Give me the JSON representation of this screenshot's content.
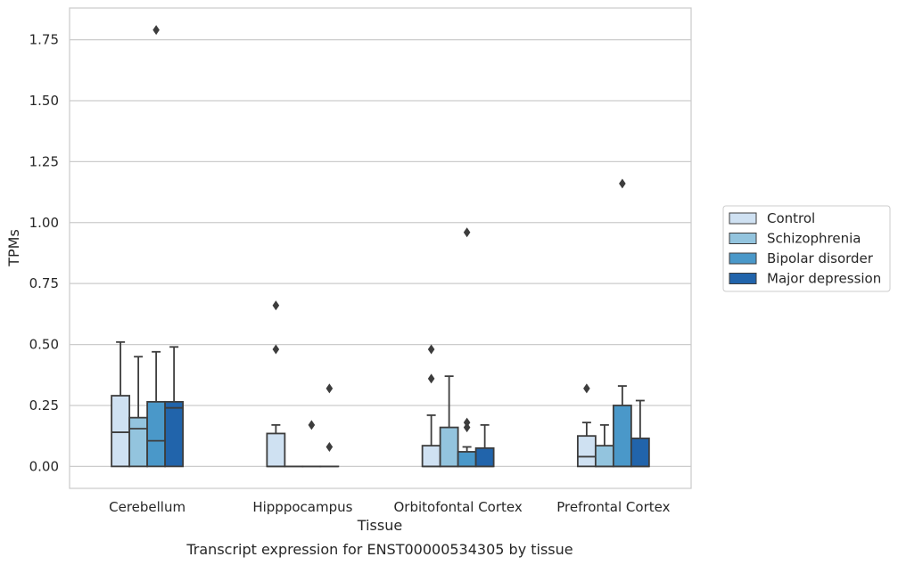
{
  "chart_data": {
    "type": "box",
    "title": "Transcript expression for ENST00000534305 by tissue",
    "xlabel": "Tissue",
    "ylabel": "TPMs",
    "ylim": [
      -0.09,
      1.88
    ],
    "yticks": [
      "0.00",
      "0.25",
      "0.50",
      "0.75",
      "1.00",
      "1.25",
      "1.50",
      "1.75"
    ],
    "grid": true,
    "legend_position": "right",
    "categories": [
      "Cerebellum",
      "Hipppocampus",
      "Orbitofontal Cortex",
      "Prefrontal Cortex"
    ],
    "series": [
      {
        "name": "Control",
        "color": "#cfe1f2",
        "boxes": [
          {
            "whisker_low": 0.0,
            "q1": 0.0,
            "median": 0.14,
            "q3": 0.29,
            "whisker_high": 0.51,
            "outliers": []
          },
          {
            "whisker_low": 0.0,
            "q1": 0.0,
            "median": 0.0,
            "q3": 0.135,
            "whisker_high": 0.17,
            "outliers": [
              0.48,
              0.66
            ]
          },
          {
            "whisker_low": 0.0,
            "q1": 0.0,
            "median": 0.0,
            "q3": 0.085,
            "whisker_high": 0.21,
            "outliers": [
              0.36,
              0.48
            ]
          },
          {
            "whisker_low": 0.0,
            "q1": 0.0,
            "median": 0.04,
            "q3": 0.125,
            "whisker_high": 0.18,
            "outliers": [
              0.32
            ]
          }
        ]
      },
      {
        "name": "Schizophrenia",
        "color": "#93c4de",
        "boxes": [
          {
            "whisker_low": 0.0,
            "q1": 0.0,
            "median": 0.155,
            "q3": 0.2,
            "whisker_high": 0.45,
            "outliers": []
          },
          {
            "whisker_low": 0.0,
            "q1": 0.0,
            "median": 0.0,
            "q3": 0.0,
            "whisker_high": 0.0,
            "outliers": []
          },
          {
            "whisker_low": 0.0,
            "q1": 0.0,
            "median": 0.0,
            "q3": 0.16,
            "whisker_high": 0.37,
            "outliers": []
          },
          {
            "whisker_low": 0.0,
            "q1": 0.0,
            "median": 0.0,
            "q3": 0.085,
            "whisker_high": 0.17,
            "outliers": []
          }
        ]
      },
      {
        "name": "Bipolar disorder",
        "color": "#4a98c9",
        "boxes": [
          {
            "whisker_low": 0.0,
            "q1": 0.0,
            "median": 0.105,
            "q3": 0.265,
            "whisker_high": 0.47,
            "outliers": [
              1.79
            ]
          },
          {
            "whisker_low": 0.0,
            "q1": 0.0,
            "median": 0.0,
            "q3": 0.0,
            "whisker_high": 0.0,
            "outliers": [
              0.17
            ]
          },
          {
            "whisker_low": 0.0,
            "q1": 0.0,
            "median": 0.0,
            "q3": 0.06,
            "whisker_high": 0.08,
            "outliers": [
              0.16,
              0.18,
              0.96
            ]
          },
          {
            "whisker_low": 0.0,
            "q1": 0.0,
            "median": 0.0,
            "q3": 0.25,
            "whisker_high": 0.33,
            "outliers": [
              1.16
            ]
          }
        ]
      },
      {
        "name": "Major depression",
        "color": "#2164ab",
        "boxes": [
          {
            "whisker_low": 0.0,
            "q1": 0.0,
            "median": 0.24,
            "q3": 0.265,
            "whisker_high": 0.49,
            "outliers": []
          },
          {
            "whisker_low": 0.0,
            "q1": 0.0,
            "median": 0.0,
            "q3": 0.0,
            "whisker_high": 0.0,
            "outliers": [
              0.08,
              0.32
            ]
          },
          {
            "whisker_low": 0.0,
            "q1": 0.0,
            "median": 0.0,
            "q3": 0.075,
            "whisker_high": 0.17,
            "outliers": []
          },
          {
            "whisker_low": 0.0,
            "q1": 0.0,
            "median": 0.0,
            "q3": 0.115,
            "whisker_high": 0.27,
            "outliers": []
          }
        ]
      }
    ]
  }
}
